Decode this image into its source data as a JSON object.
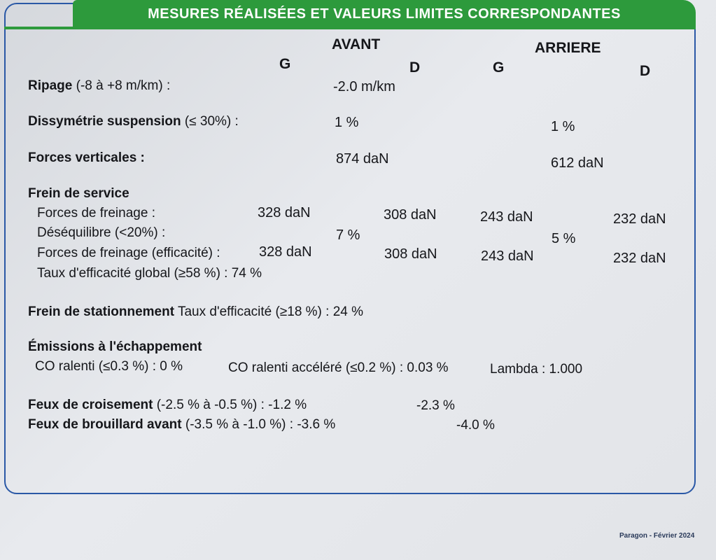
{
  "header": {
    "title": "MESURES RÉALISÉES ET VALEURS LIMITES CORRESPONDANTES"
  },
  "columns": {
    "front": "AVANT",
    "rear": "ARRIERE",
    "front_left": "G",
    "front_right": "D",
    "rear_left": "G",
    "rear_right": "D"
  },
  "ripage": {
    "label": "Ripage",
    "limit": "(-8 à +8 m/km) :",
    "value": "-2.0 m/km"
  },
  "suspension": {
    "label": "Dissymétrie suspension",
    "limit": "(≤ 30%) :",
    "front": "1 %",
    "rear": "1 %"
  },
  "vertical_forces": {
    "label": "Forces verticales :",
    "front": "874 daN",
    "rear": "612 daN"
  },
  "service_brake": {
    "title": "Frein de service",
    "braking_forces": {
      "label": "Forces de freinage :",
      "fl": "328 daN",
      "fr": "308 daN",
      "rl": "243 daN",
      "rr": "232 daN"
    },
    "imbalance": {
      "label": "Déséquilibre (<20%) :",
      "front": "7 %",
      "rear": "5 %"
    },
    "braking_forces_eff": {
      "label": "Forces de freinage (efficacité) :",
      "fl": "328 daN",
      "fr": "308 daN",
      "rl": "243 daN",
      "rr": "232 daN"
    },
    "global_efficiency": "Taux d'efficacité global (≥58 %) : 74 %"
  },
  "parking_brake": {
    "label": "Frein de stationnement",
    "text": "Taux d'efficacité (≥18 %) : 24 %"
  },
  "emissions": {
    "title": "Émissions à l'échappement",
    "co_idle": "CO ralenti (≤0.3 %) : 0 %",
    "co_fast_idle": "CO ralenti accéléré (≤0.2 %) : 0.03 %",
    "lambda": "Lambda : 1.000"
  },
  "lights": {
    "low_beam": {
      "label": "Feux de croisement",
      "limit": "(-2.5 % à -0.5 %) : -1.2 %",
      "right": "-2.3 %"
    },
    "fog": {
      "label": "Feux de brouillard avant",
      "limit": "(-3.5 % à -1.0 %) : -3.6 %",
      "right": "-4.0 %"
    }
  },
  "footer": {
    "text": "Paragon - Février 2024"
  }
}
